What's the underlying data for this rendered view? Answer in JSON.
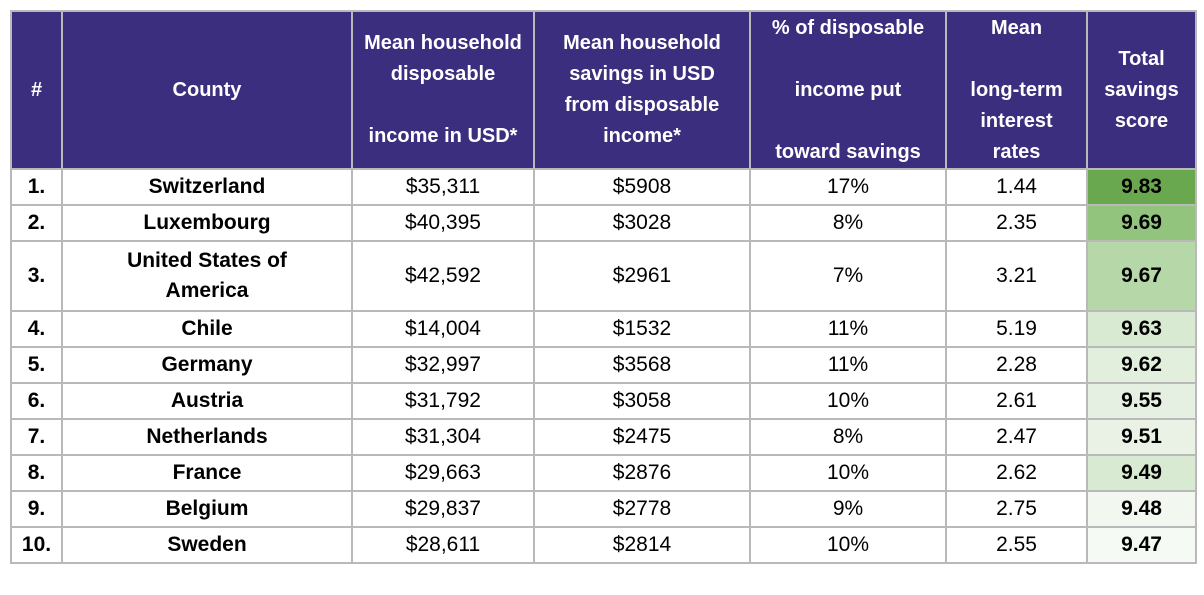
{
  "table": {
    "headers": {
      "rank": "#",
      "country": "County",
      "income": [
        "Mean household",
        "disposable",
        "",
        "income in USD*"
      ],
      "savings": [
        "Mean household",
        "savings in USD",
        "from disposable",
        "income*"
      ],
      "percent": [
        "% of disposable",
        "",
        "income put",
        "",
        "toward savings"
      ],
      "interest": [
        "Mean",
        "",
        "long-term",
        "interest",
        "rates"
      ],
      "score": [
        "Total",
        "savings",
        "score"
      ]
    },
    "rows": [
      {
        "rank": "1.",
        "country": "Switzerland",
        "income": "$35,311",
        "savings": "$5908",
        "percent": "17%",
        "interest": "1.44",
        "score": "9.83",
        "score_color": "#6aa84f"
      },
      {
        "rank": "2.",
        "country": "Luxembourg",
        "income": "$40,395",
        "savings": "$3028",
        "percent": "8%",
        "interest": "2.35",
        "score": "9.69",
        "score_color": "#93c47d"
      },
      {
        "rank": "3.",
        "country": "United States of America",
        "income": "$42,592",
        "savings": "$2961",
        "percent": "7%",
        "interest": "3.21",
        "score": "9.67",
        "score_color": "#b6d7a8"
      },
      {
        "rank": "4.",
        "country": "Chile",
        "income": "$14,004",
        "savings": "$1532",
        "percent": "11%",
        "interest": "5.19",
        "score": "9.63",
        "score_color": "#d9ead3"
      },
      {
        "rank": "5.",
        "country": "Germany",
        "income": "$32,997",
        "savings": "$3568",
        "percent": "11%",
        "interest": "2.28",
        "score": "9.62",
        "score_color": "#e2efdc"
      },
      {
        "rank": "6.",
        "country": "Austria",
        "income": "$31,792",
        "savings": "$3058",
        "percent": "10%",
        "interest": "2.61",
        "score": "9.55",
        "score_color": "#e6f0e2"
      },
      {
        "rank": "7.",
        "country": "Netherlands",
        "income": "$31,304",
        "savings": "$2475",
        "percent": "8%",
        "interest": "2.47",
        "score": "9.51",
        "score_color": "#eaf2e6"
      },
      {
        "rank": "8.",
        "country": "France",
        "income": "$29,663",
        "savings": "$2876",
        "percent": "10%",
        "interest": "2.62",
        "score": "9.49",
        "score_color": "#d9ead3"
      },
      {
        "rank": "9.",
        "country": "Belgium",
        "income": "$29,837",
        "savings": "$2778",
        "percent": "9%",
        "interest": "2.75",
        "score": "9.48",
        "score_color": "#f2f7ef"
      },
      {
        "rank": "10.",
        "country": "Sweden",
        "income": "$28,611",
        "savings": "$2814",
        "percent": "10%",
        "interest": "2.55",
        "score": "9.47",
        "score_color": "#f6faf4"
      }
    ]
  }
}
